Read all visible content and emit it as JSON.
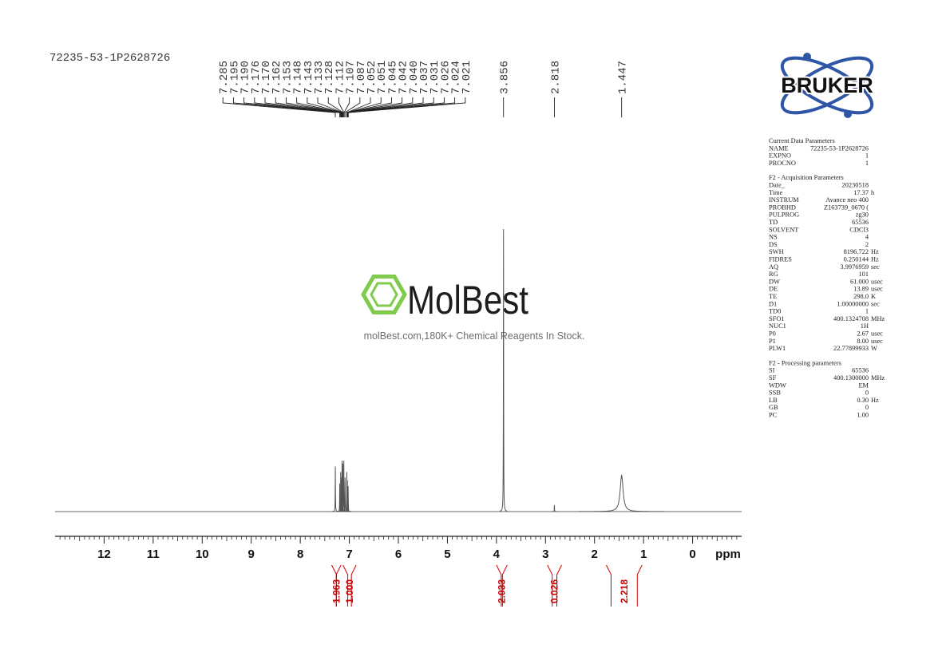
{
  "chart_data": {
    "type": "nmr",
    "sample_name": "72235-53-1P2628726",
    "x_label": "ppm",
    "xlim": [
      13,
      -1
    ],
    "xticks": [
      12,
      11,
      10,
      9,
      8,
      7,
      6,
      5,
      4,
      3,
      2,
      1,
      0
    ],
    "ylim": [
      0,
      100
    ],
    "color": "#555555",
    "integral_color": "#cc0000",
    "peak_labels": [
      7.285,
      7.195,
      {
        "value": 7.19,
        "label": "7.190"
      },
      7.176,
      {
        "value": 7.17,
        "label": "7.170"
      },
      7.162,
      7.153,
      7.148,
      7.143,
      7.133,
      7.128,
      7.112,
      7.107,
      7.087,
      7.052,
      7.051,
      7.045,
      7.042,
      {
        "value": 7.04,
        "label": "7.040"
      },
      7.037,
      7.031,
      7.026,
      7.024,
      7.021,
      3.856,
      2.818,
      1.447
    ],
    "signals": [
      {
        "ppm": 7.285,
        "height": 16,
        "linewidth": 0.003
      },
      {
        "ppm": 7.195,
        "height": 10,
        "linewidth": 0.003
      },
      {
        "ppm": 7.176,
        "height": 14,
        "linewidth": 0.003
      },
      {
        "ppm": 7.162,
        "height": 12,
        "linewidth": 0.003
      },
      {
        "ppm": 7.148,
        "height": 18,
        "linewidth": 0.003
      },
      {
        "ppm": 7.133,
        "height": 17,
        "linewidth": 0.003
      },
      {
        "ppm": 7.112,
        "height": 18,
        "linewidth": 0.003
      },
      {
        "ppm": 7.087,
        "height": 12,
        "linewidth": 0.003
      },
      {
        "ppm": 7.051,
        "height": 14,
        "linewidth": 0.003
      },
      {
        "ppm": 7.04,
        "height": 11,
        "linewidth": 0.003
      },
      {
        "ppm": 7.024,
        "height": 9,
        "linewidth": 0.003
      },
      {
        "ppm": 3.856,
        "height": 100,
        "linewidth": 0.003
      },
      {
        "ppm": 2.818,
        "height": 2.3,
        "linewidth": 0.003
      },
      {
        "ppm": 1.447,
        "height": 13,
        "linewidth": 0.035
      }
    ],
    "integrals": [
      {
        "value": 1.963,
        "from": 7.36,
        "to": 7.17
      },
      {
        "value": 1,
        "label": "1.000",
        "from": 7.13,
        "to": 6.86
      },
      {
        "value": 2.033,
        "from": 4.0,
        "to": 3.78
      },
      {
        "value": 0.026,
        "from": 2.96,
        "to": 2.67
      },
      {
        "value": 2.218,
        "from": 1.76,
        "to": 1.03
      }
    ]
  },
  "logo": {
    "brand": "BRUKER"
  },
  "watermark": {
    "name": "MolBest",
    "tagline": "molBest.com,180K+ Chemical Reagents In Stock."
  },
  "parameters": [
    {
      "title": "Current Data Parameters",
      "rows": [
        [
          "NAME",
          "72235-53-1P2628726"
        ],
        [
          "EXPNO",
          "1"
        ],
        [
          "PROCNO",
          "1"
        ]
      ]
    },
    {
      "title": "F2 - Acquisition Parameters",
      "rows": [
        [
          "Date_",
          "20230518"
        ],
        [
          "Time",
          "17.37",
          "h"
        ],
        [
          "INSTRUM",
          "Avance neo 400"
        ],
        [
          "PROBHD",
          "Z163739_0670 ("
        ],
        [
          "PULPROG",
          "zg30"
        ],
        [
          "TD",
          "65536"
        ],
        [
          "SOLVENT",
          "CDCl3"
        ],
        [
          "NS",
          "4"
        ],
        [
          "DS",
          "2"
        ],
        [
          "SWH",
          "8196.722",
          "Hz"
        ],
        [
          "FIDRES",
          "0.250144",
          "Hz"
        ],
        [
          "AQ",
          "3.9976959",
          "sec"
        ],
        [
          "RG",
          "101"
        ],
        [
          "DW",
          "61.000",
          "usec"
        ],
        [
          "DE",
          "13.89",
          "usec"
        ],
        [
          "TE",
          "298.0",
          "K"
        ],
        [
          "D1",
          "1.00000000",
          "sec"
        ],
        [
          "TD0",
          "1"
        ],
        [
          "SFO1",
          "400.1324708",
          "MHz"
        ],
        [
          "NUC1",
          "1H"
        ],
        [
          "P0",
          "2.67",
          "usec"
        ],
        [
          "P1",
          "8.00",
          "usec"
        ],
        [
          "PLW1",
          "22.77899933",
          "W"
        ]
      ]
    },
    {
      "title": "F2 - Processing parameters",
      "rows": [
        [
          "SI",
          "65536"
        ],
        [
          "SF",
          "400.1300000",
          "MHz"
        ],
        [
          "WDW",
          "EM"
        ],
        [
          "SSB",
          "0"
        ],
        [
          "LB",
          "0.30",
          "Hz"
        ],
        [
          "GB",
          "0"
        ],
        [
          "PC",
          "1.00"
        ]
      ]
    }
  ]
}
